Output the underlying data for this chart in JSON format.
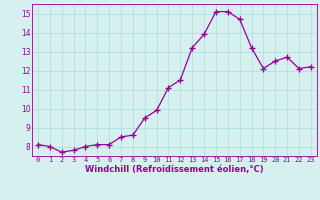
{
  "x": [
    0,
    1,
    2,
    3,
    4,
    5,
    6,
    7,
    8,
    9,
    10,
    11,
    12,
    13,
    14,
    15,
    16,
    17,
    18,
    19,
    20,
    21,
    22,
    23
  ],
  "y": [
    8.1,
    8.0,
    7.7,
    7.8,
    8.0,
    8.1,
    8.1,
    8.5,
    8.6,
    9.5,
    9.9,
    11.1,
    11.5,
    13.2,
    13.9,
    15.1,
    15.1,
    14.7,
    13.2,
    12.1,
    12.5,
    12.7,
    12.1,
    12.2
  ],
  "line_color": "#990099",
  "marker": "+",
  "marker_size": 4,
  "bg_color": "#d6f0f0",
  "grid_color": "#aadddd",
  "xlabel": "Windchill (Refroidissement éolien,°C)",
  "xlabel_color": "#990099",
  "tick_color": "#990099",
  "ylim": [
    7.5,
    15.5
  ],
  "xlim": [
    -0.5,
    23.5
  ],
  "yticks": [
    8,
    9,
    10,
    11,
    12,
    13,
    14,
    15
  ],
  "xticks": [
    0,
    1,
    2,
    3,
    4,
    5,
    6,
    7,
    8,
    9,
    10,
    11,
    12,
    13,
    14,
    15,
    16,
    17,
    18,
    19,
    20,
    21,
    22,
    23
  ],
  "spine_color": "#990099",
  "figsize": [
    3.2,
    2.0
  ],
  "dpi": 100
}
